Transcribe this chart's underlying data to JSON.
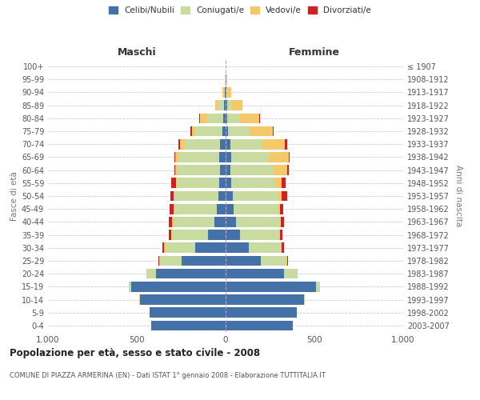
{
  "age_groups": [
    "0-4",
    "5-9",
    "10-14",
    "15-19",
    "20-24",
    "25-29",
    "30-34",
    "35-39",
    "40-44",
    "45-49",
    "50-54",
    "55-59",
    "60-64",
    "65-69",
    "70-74",
    "75-79",
    "80-84",
    "85-89",
    "90-94",
    "95-99",
    "100+"
  ],
  "birth_years": [
    "2003-2007",
    "1998-2002",
    "1993-1997",
    "1988-1992",
    "1983-1987",
    "1978-1982",
    "1973-1977",
    "1968-1972",
    "1963-1967",
    "1958-1962",
    "1953-1957",
    "1948-1952",
    "1943-1947",
    "1938-1942",
    "1933-1937",
    "1928-1932",
    "1923-1927",
    "1918-1922",
    "1913-1917",
    "1908-1912",
    "≤ 1907"
  ],
  "maschi": {
    "celibi": [
      420,
      430,
      480,
      530,
      390,
      250,
      170,
      100,
      65,
      50,
      40,
      35,
      30,
      35,
      30,
      20,
      15,
      10,
      4,
      2,
      0
    ],
    "coniugati": [
      0,
      0,
      5,
      15,
      50,
      120,
      170,
      200,
      230,
      240,
      250,
      240,
      245,
      230,
      200,
      150,
      90,
      30,
      8,
      3,
      0
    ],
    "vedovi": [
      0,
      0,
      0,
      0,
      5,
      5,
      5,
      5,
      5,
      5,
      5,
      5,
      10,
      20,
      25,
      20,
      40,
      20,
      5,
      0,
      0
    ],
    "divorziati": [
      0,
      0,
      0,
      0,
      0,
      5,
      10,
      15,
      20,
      20,
      15,
      25,
      5,
      5,
      10,
      10,
      5,
      0,
      0,
      0,
      0
    ]
  },
  "femmine": {
    "nubili": [
      380,
      400,
      440,
      510,
      330,
      200,
      130,
      80,
      60,
      45,
      40,
      30,
      25,
      30,
      25,
      15,
      10,
      10,
      3,
      2,
      0
    ],
    "coniugate": [
      0,
      0,
      5,
      20,
      70,
      140,
      180,
      220,
      240,
      250,
      255,
      245,
      240,
      215,
      180,
      120,
      70,
      25,
      8,
      3,
      0
    ],
    "vedove": [
      0,
      0,
      0,
      0,
      5,
      5,
      5,
      5,
      10,
      10,
      20,
      40,
      80,
      110,
      130,
      130,
      110,
      60,
      20,
      5,
      0
    ],
    "divorziate": [
      0,
      0,
      0,
      0,
      0,
      5,
      15,
      15,
      20,
      20,
      30,
      25,
      10,
      5,
      10,
      5,
      5,
      0,
      0,
      0,
      0
    ]
  },
  "colors": {
    "celibi": "#4472a8",
    "coniugati": "#c8dba0",
    "vedovi": "#f5c96a",
    "divorziati": "#cc2222"
  },
  "xlim": 1000,
  "title": "Popolazione per età, sesso e stato civile - 2008",
  "subtitle": "COMUNE DI PIAZZA ARMERINA (EN) - Dati ISTAT 1° gennaio 2008 - Elaborazione TUTTITALIA.IT",
  "xlabel_left": "Maschi",
  "xlabel_right": "Femmine",
  "ylabel_left": "Fasce di età",
  "ylabel_right": "Anni di nascita",
  "legend_labels": [
    "Celibi/Nubili",
    "Coniugati/e",
    "Vedovi/e",
    "Divorziati/e"
  ],
  "background_color": "#ffffff",
  "grid_color": "#cccccc"
}
